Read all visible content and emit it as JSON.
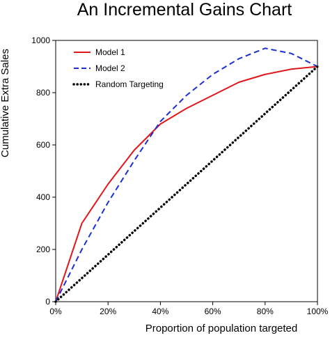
{
  "chart_data": {
    "type": "line",
    "title": "An Incremental Gains Chart",
    "xlabel": "Proportion of population targeted",
    "ylabel": "Cumulative Extra Sales",
    "xlim": [
      0,
      100
    ],
    "ylim": [
      0,
      1000
    ],
    "x_ticks": [
      0,
      20,
      40,
      60,
      80,
      100
    ],
    "x_tick_labels": [
      "0%",
      "20%",
      "40%",
      "60%",
      "80%",
      "100%"
    ],
    "y_ticks": [
      0,
      200,
      400,
      600,
      800,
      1000
    ],
    "y_tick_labels": [
      "0",
      "200",
      "400",
      "600",
      "800",
      "1000"
    ],
    "grid": false,
    "legend_position": "top-left",
    "series": [
      {
        "name": "Model 1",
        "color": "#e0161b",
        "style": "solid",
        "x": [
          0,
          10,
          20,
          30,
          40,
          50,
          60,
          70,
          80,
          90,
          100
        ],
        "values": [
          0,
          300,
          450,
          580,
          680,
          740,
          790,
          840,
          870,
          890,
          900
        ]
      },
      {
        "name": "Model 2",
        "color": "#1b2ed6",
        "style": "dashed",
        "x": [
          0,
          10,
          20,
          30,
          40,
          50,
          60,
          70,
          80,
          90,
          100
        ],
        "values": [
          0,
          200,
          380,
          540,
          690,
          790,
          870,
          930,
          970,
          950,
          900
        ]
      },
      {
        "name": "Random Targeting",
        "color": "#000000",
        "style": "dotted",
        "x": [
          0,
          100
        ],
        "values": [
          0,
          900
        ]
      }
    ]
  }
}
